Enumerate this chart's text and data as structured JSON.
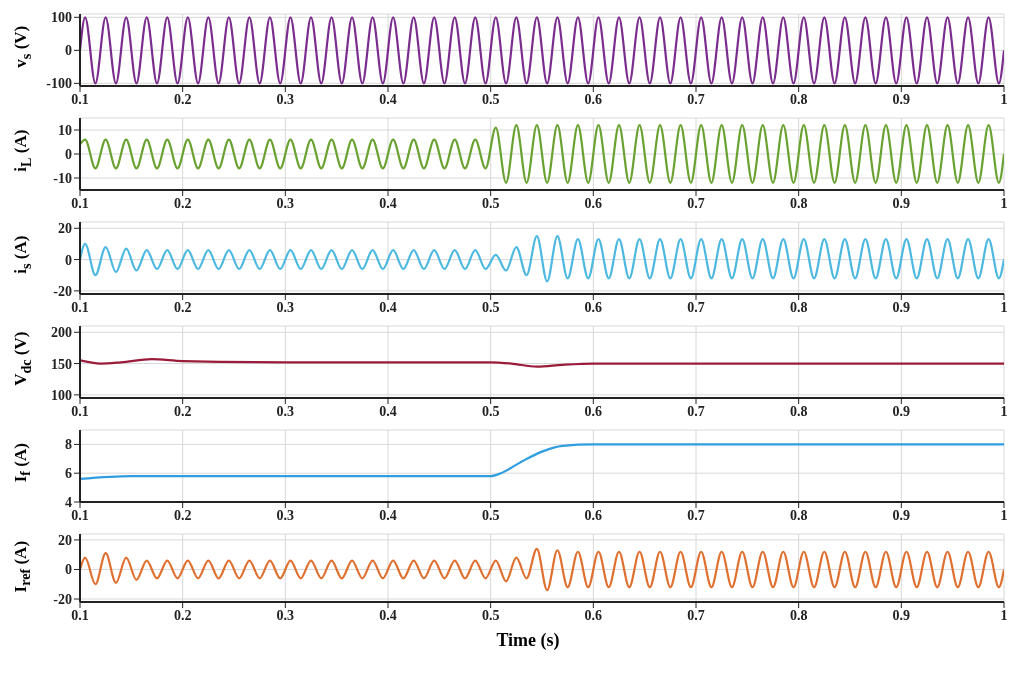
{
  "chart_data": [
    {
      "type": "line",
      "ylabel": "v$_{s}$ (V)",
      "color": "#7b2d8e",
      "grid": true,
      "xlim": [
        0.1,
        1
      ],
      "xticks": [
        0.1,
        0.2,
        0.3,
        0.4,
        0.5,
        0.6,
        0.7,
        0.8,
        0.9,
        1
      ],
      "ylim": [
        -108,
        110
      ],
      "yticks": [
        -100,
        0,
        100
      ],
      "x": [
        0.1,
        0.105,
        0.115,
        0.125,
        0.135,
        0.145,
        0.155,
        0.165,
        0.175,
        0.185,
        0.195,
        0.205,
        0.215,
        0.225,
        0.235,
        0.245,
        0.255,
        0.265,
        0.275,
        0.285,
        0.295,
        0.305,
        0.315,
        0.325,
        0.335,
        0.345,
        0.355,
        0.365,
        0.375,
        0.385,
        0.395,
        0.405,
        0.415,
        0.425,
        0.435,
        0.445,
        0.455,
        0.465,
        0.475,
        0.485,
        0.495,
        0.505,
        0.515,
        0.525,
        0.535,
        0.545,
        0.555,
        0.565,
        0.575,
        0.585,
        0.595,
        0.605,
        0.615,
        0.625,
        0.635,
        0.645,
        0.655,
        0.665,
        0.675,
        0.685,
        0.695,
        0.705,
        0.715,
        0.725,
        0.735,
        0.745,
        0.755,
        0.765,
        0.775,
        0.785,
        0.795,
        0.805,
        0.815,
        0.825,
        0.835,
        0.845,
        0.855,
        0.865,
        0.875,
        0.885,
        0.895,
        0.905,
        0.915,
        0.925,
        0.935,
        0.945,
        0.955,
        0.965,
        0.975,
        0.985,
        0.995,
        1
      ],
      "values": [
        0,
        100,
        -100,
        100,
        -100,
        100,
        -100,
        100,
        -100,
        100,
        -100,
        100,
        -100,
        100,
        -100,
        100,
        -100,
        100,
        -100,
        100,
        -100,
        100,
        -100,
        100,
        -100,
        100,
        -100,
        100,
        -100,
        100,
        -100,
        100,
        -100,
        100,
        -100,
        100,
        -100,
        100,
        -100,
        100,
        -100,
        100,
        -100,
        100,
        -100,
        100,
        -100,
        100,
        -100,
        100,
        -100,
        100,
        -100,
        100,
        -100,
        100,
        -100,
        100,
        -100,
        100,
        -100,
        100,
        -100,
        100,
        -100,
        100,
        -100,
        100,
        -100,
        100,
        -100,
        100,
        -100,
        100,
        -100,
        100,
        -100,
        100,
        -100,
        100,
        -100,
        100,
        -100,
        100,
        -100,
        100,
        -100,
        100,
        -100,
        100,
        -100,
        0
      ]
    },
    {
      "type": "line",
      "ylabel": "i$_{L}$ (A)",
      "color": "#6aa232",
      "grid": true,
      "xlim": [
        0.1,
        1
      ],
      "xticks": [
        0.1,
        0.2,
        0.3,
        0.4,
        0.5,
        0.6,
        0.7,
        0.8,
        0.9,
        1
      ],
      "ylim": [
        -15,
        15
      ],
      "yticks": [
        -10,
        0,
        10
      ],
      "x": [
        0.1,
        0.105,
        0.115,
        0.125,
        0.135,
        0.145,
        0.155,
        0.165,
        0.175,
        0.185,
        0.195,
        0.205,
        0.215,
        0.225,
        0.235,
        0.245,
        0.255,
        0.265,
        0.275,
        0.285,
        0.295,
        0.305,
        0.315,
        0.325,
        0.335,
        0.345,
        0.355,
        0.365,
        0.375,
        0.385,
        0.395,
        0.405,
        0.415,
        0.425,
        0.435,
        0.445,
        0.455,
        0.465,
        0.475,
        0.485,
        0.495,
        0.505,
        0.515,
        0.525,
        0.535,
        0.545,
        0.555,
        0.565,
        0.575,
        0.585,
        0.595,
        0.605,
        0.615,
        0.625,
        0.635,
        0.645,
        0.655,
        0.665,
        0.675,
        0.685,
        0.695,
        0.705,
        0.715,
        0.725,
        0.735,
        0.745,
        0.755,
        0.765,
        0.775,
        0.785,
        0.795,
        0.805,
        0.815,
        0.825,
        0.835,
        0.845,
        0.855,
        0.865,
        0.875,
        0.885,
        0.895,
        0.905,
        0.915,
        0.925,
        0.935,
        0.945,
        0.955,
        0.965,
        0.975,
        0.985,
        0.995,
        1
      ],
      "values": [
        4,
        6,
        -6,
        6,
        -6,
        6,
        -6,
        6,
        -6,
        6,
        -6,
        6,
        -6,
        6,
        -6,
        6,
        -6,
        6,
        -6,
        6,
        -6,
        6,
        -6,
        6,
        -6,
        6,
        -6,
        6,
        -6,
        6,
        -6,
        6,
        -6,
        6,
        -6,
        6,
        -6,
        6,
        -6,
        6,
        -6,
        11,
        -12,
        12,
        -12,
        12,
        -12,
        12,
        -12,
        12,
        -12,
        12,
        -12,
        12,
        -12,
        12,
        -12,
        12,
        -12,
        12,
        -12,
        12,
        -12,
        12,
        -12,
        12,
        -12,
        12,
        -12,
        12,
        -12,
        12,
        -12,
        12,
        -12,
        12,
        -12,
        12,
        -12,
        12,
        -12,
        12,
        -12,
        12,
        -12,
        12,
        -12,
        12,
        -12,
        12,
        -12,
        0
      ]
    },
    {
      "type": "line",
      "ylabel": "i$_{s}$ (A)",
      "color": "#4db8e0",
      "grid": true,
      "xlim": [
        0.1,
        1
      ],
      "xticks": [
        0.1,
        0.2,
        0.3,
        0.4,
        0.5,
        0.6,
        0.7,
        0.8,
        0.9,
        1
      ],
      "ylim": [
        -22,
        24
      ],
      "yticks": [
        -20,
        0,
        20
      ],
      "x": [
        0.1,
        0.105,
        0.115,
        0.125,
        0.135,
        0.145,
        0.155,
        0.165,
        0.175,
        0.185,
        0.195,
        0.205,
        0.215,
        0.225,
        0.235,
        0.245,
        0.255,
        0.265,
        0.275,
        0.285,
        0.295,
        0.305,
        0.315,
        0.325,
        0.335,
        0.345,
        0.355,
        0.365,
        0.375,
        0.385,
        0.395,
        0.405,
        0.415,
        0.425,
        0.435,
        0.445,
        0.455,
        0.465,
        0.475,
        0.485,
        0.495,
        0.505,
        0.515,
        0.525,
        0.535,
        0.545,
        0.555,
        0.565,
        0.575,
        0.585,
        0.595,
        0.605,
        0.615,
        0.625,
        0.635,
        0.645,
        0.655,
        0.665,
        0.675,
        0.685,
        0.695,
        0.705,
        0.715,
        0.725,
        0.735,
        0.745,
        0.755,
        0.765,
        0.775,
        0.785,
        0.795,
        0.805,
        0.815,
        0.825,
        0.835,
        0.845,
        0.855,
        0.865,
        0.875,
        0.885,
        0.895,
        0.905,
        0.915,
        0.925,
        0.935,
        0.945,
        0.955,
        0.965,
        0.975,
        0.985,
        0.995,
        1
      ],
      "values": [
        0,
        10,
        -10,
        8,
        -8,
        7,
        -7,
        6,
        -6,
        6,
        -6,
        6,
        -6,
        6,
        -6,
        6,
        -6,
        6,
        -6,
        6,
        -6,
        6,
        -6,
        6,
        -6,
        6,
        -6,
        6,
        -6,
        6,
        -6,
        6,
        -6,
        6,
        -6,
        6,
        -6,
        6,
        -6,
        6,
        -6,
        3,
        -7,
        8,
        -10,
        15,
        -14,
        15,
        -12,
        13,
        -12,
        13,
        -12,
        13,
        -12,
        13,
        -12,
        13,
        -12,
        13,
        -12,
        13,
        -12,
        13,
        -12,
        13,
        -12,
        13,
        -12,
        13,
        -12,
        13,
        -12,
        13,
        -12,
        13,
        -12,
        13,
        -12,
        13,
        -12,
        13,
        -12,
        13,
        -12,
        13,
        -12,
        13,
        -12,
        13,
        -12,
        0
      ]
    },
    {
      "type": "line",
      "ylabel": "V$_{dc}$ (V)",
      "color": "#9b1b3a",
      "grid": true,
      "xlim": [
        0.1,
        1
      ],
      "xticks": [
        0.1,
        0.2,
        0.3,
        0.4,
        0.5,
        0.6,
        0.7,
        0.8,
        0.9,
        1
      ],
      "ylim": [
        95,
        210
      ],
      "yticks": [
        100,
        150,
        200
      ],
      "x": [
        0.1,
        0.12,
        0.14,
        0.17,
        0.2,
        0.3,
        0.4,
        0.5,
        0.52,
        0.545,
        0.57,
        0.6,
        0.7,
        0.8,
        0.9,
        1
      ],
      "values": [
        155,
        150,
        152,
        157,
        154,
        152,
        152,
        152,
        150,
        145,
        148,
        150,
        150,
        150,
        150,
        150
      ]
    },
    {
      "type": "line",
      "ylabel": "I$_{f}$ (A)",
      "color": "#2f9ee0",
      "grid": true,
      "xlim": [
        0.1,
        1
      ],
      "xticks": [
        0.1,
        0.2,
        0.3,
        0.4,
        0.5,
        0.6,
        0.7,
        0.8,
        0.9,
        1
      ],
      "ylim": [
        4,
        9
      ],
      "yticks": [
        4,
        6,
        8
      ],
      "x": [
        0.1,
        0.15,
        0.2,
        0.3,
        0.4,
        0.5,
        0.51,
        0.53,
        0.55,
        0.57,
        0.6,
        0.7,
        0.8,
        0.9,
        1
      ],
      "values": [
        5.6,
        5.8,
        5.8,
        5.8,
        5.8,
        5.8,
        6,
        6.8,
        7.5,
        7.9,
        8,
        8,
        8,
        8,
        8
      ]
    },
    {
      "type": "line",
      "ylabel": "I$_{ref}$ (A)",
      "xlabel": "Time (s)",
      "color": "#e07030",
      "grid": true,
      "xlim": [
        0.1,
        1
      ],
      "xticks": [
        0.1,
        0.2,
        0.3,
        0.4,
        0.5,
        0.6,
        0.7,
        0.8,
        0.9,
        1
      ],
      "ylim": [
        -22,
        24
      ],
      "yticks": [
        -20,
        0,
        20
      ],
      "x": [
        0.1,
        0.105,
        0.115,
        0.125,
        0.135,
        0.145,
        0.155,
        0.165,
        0.175,
        0.185,
        0.195,
        0.205,
        0.215,
        0.225,
        0.235,
        0.245,
        0.255,
        0.265,
        0.275,
        0.285,
        0.295,
        0.305,
        0.315,
        0.325,
        0.335,
        0.345,
        0.355,
        0.365,
        0.375,
        0.385,
        0.395,
        0.405,
        0.415,
        0.425,
        0.435,
        0.445,
        0.455,
        0.465,
        0.475,
        0.485,
        0.495,
        0.505,
        0.515,
        0.525,
        0.535,
        0.545,
        0.555,
        0.565,
        0.575,
        0.585,
        0.595,
        0.605,
        0.615,
        0.625,
        0.635,
        0.645,
        0.655,
        0.665,
        0.675,
        0.685,
        0.695,
        0.705,
        0.715,
        0.725,
        0.735,
        0.745,
        0.755,
        0.765,
        0.775,
        0.785,
        0.795,
        0.805,
        0.815,
        0.825,
        0.835,
        0.845,
        0.855,
        0.865,
        0.875,
        0.885,
        0.895,
        0.905,
        0.915,
        0.925,
        0.935,
        0.945,
        0.955,
        0.965,
        0.975,
        0.985,
        0.995,
        1
      ],
      "values": [
        0,
        8,
        -10,
        11,
        -9,
        8,
        -7,
        6,
        -6,
        6,
        -6,
        6,
        -6,
        6,
        -6,
        6,
        -6,
        6,
        -6,
        6,
        -6,
        6,
        -6,
        6,
        -6,
        6,
        -6,
        6,
        -6,
        6,
        -6,
        6,
        -6,
        6,
        -6,
        6,
        -6,
        6,
        -6,
        6,
        -6,
        6,
        -8,
        8,
        -6,
        14,
        -14,
        13,
        -12,
        12,
        -12,
        12,
        -12,
        12,
        -12,
        12,
        -12,
        12,
        -12,
        12,
        -12,
        12,
        -12,
        12,
        -12,
        12,
        -12,
        12,
        -12,
        12,
        -12,
        12,
        -12,
        12,
        -12,
        12,
        -12,
        12,
        -12,
        12,
        -12,
        12,
        -12,
        12,
        -12,
        12,
        -12,
        12,
        -12,
        12,
        -12,
        0
      ]
    }
  ]
}
